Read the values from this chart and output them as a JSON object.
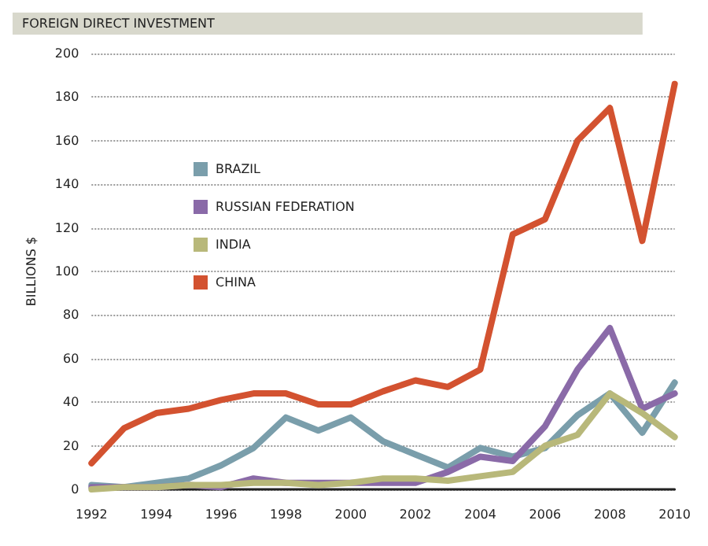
{
  "chart_data": {
    "type": "line",
    "title": "FOREIGN DIRECT INVESTMENT",
    "ylabel": "BILLIONS $",
    "x": [
      1992,
      1993,
      1994,
      1995,
      1996,
      1997,
      1998,
      1999,
      2000,
      2001,
      2002,
      2003,
      2004,
      2005,
      2006,
      2007,
      2008,
      2009,
      2010
    ],
    "xlim": [
      1992,
      2010
    ],
    "xticks": [
      1992,
      1994,
      1996,
      1998,
      2000,
      2002,
      2004,
      2006,
      2008,
      2010
    ],
    "ylim": [
      0,
      200
    ],
    "yticks": [
      0,
      20,
      40,
      60,
      80,
      100,
      120,
      140,
      160,
      180,
      200
    ],
    "grid": "y",
    "legend": "top left",
    "marker": "none",
    "line_style": "solid",
    "series": [
      {
        "name": "BRAZIL",
        "color": "#7a9eab",
        "values": [
          2,
          1,
          3,
          5,
          11,
          19,
          33,
          27,
          33,
          22,
          16,
          10,
          19,
          15,
          19,
          34,
          44,
          26,
          49
        ]
      },
      {
        "name": "RUSSIAN FEDERATION",
        "color": "#8a6aa8",
        "values": [
          1,
          1,
          1,
          2,
          1,
          5,
          3,
          3,
          3,
          3,
          3,
          8,
          15,
          13,
          29,
          55,
          74,
          37,
          44
        ]
      },
      {
        "name": "INDIA",
        "color": "#b8b87a",
        "values": [
          0,
          1,
          1,
          2,
          2,
          3,
          3,
          2,
          3,
          5,
          5,
          4,
          6,
          8,
          20,
          25,
          44,
          35,
          24
        ]
      },
      {
        "name": "CHINA",
        "color": "#d35230",
        "values": [
          12,
          28,
          35,
          37,
          41,
          44,
          44,
          39,
          39,
          45,
          50,
          47,
          55,
          117,
          124,
          160,
          175,
          114,
          186
        ]
      }
    ]
  }
}
